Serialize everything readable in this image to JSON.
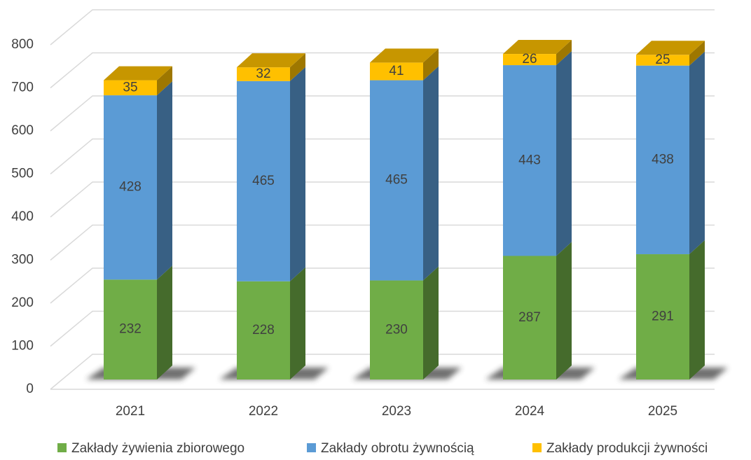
{
  "chart_data": {
    "type": "bar3d_stacked",
    "categories": [
      "2021",
      "2022",
      "2023",
      "2024",
      "2025"
    ],
    "series": [
      {
        "name": "Zakłady żywienia zbiorowego",
        "color": "#70ad47",
        "values": [
          232,
          228,
          230,
          287,
          291
        ]
      },
      {
        "name": "Zakłady obrotu żywnością",
        "color": "#5b9bd5",
        "values": [
          428,
          465,
          465,
          443,
          438
        ]
      },
      {
        "name": "Zakłady produkcji żywności",
        "color": "#ffc000",
        "values": [
          35,
          32,
          41,
          26,
          25
        ]
      }
    ],
    "ylim": [
      0,
      800
    ],
    "yticks": [
      0,
      100,
      200,
      300,
      400,
      500,
      600,
      700,
      800
    ],
    "grid": true,
    "legend": "bottom"
  }
}
